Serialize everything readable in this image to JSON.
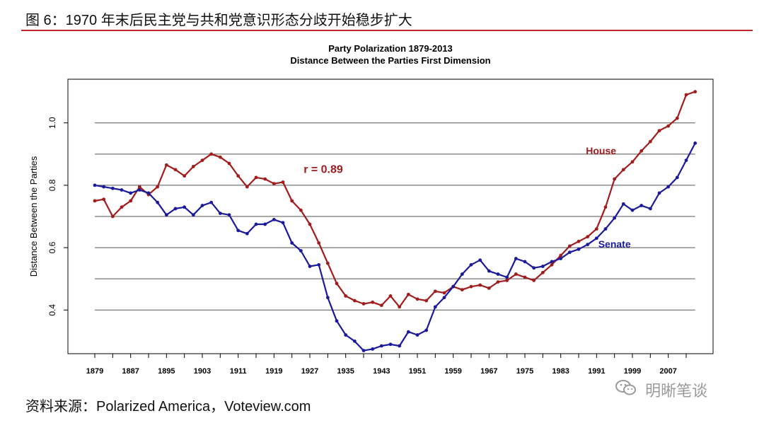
{
  "figure": {
    "title": "图 6：1970 年末后民主党与共和党意识形态分歧开始稳步扩大",
    "source": "资料来源：Polarized America，Voteview.com",
    "watermark_text": "明晰笔谈",
    "watermark_icon": "wechat-icon"
  },
  "chart_data": {
    "type": "line",
    "title": "Party Polarization 1879-2013",
    "subtitle": "Distance Between the Parties First Dimension",
    "xlabel": "",
    "ylabel": "Distance Between the Parties",
    "xlim": [
      1879,
      2013
    ],
    "ylim": [
      0.26,
      1.14
    ],
    "yticks": [
      0.4,
      0.6,
      0.8,
      1.0
    ],
    "ytick_labels": [
      "0.4",
      "0.6",
      "0.8",
      "1.0"
    ],
    "xticks": [
      1879,
      1883,
      1887,
      1891,
      1895,
      1899,
      1903,
      1907,
      1911,
      1915,
      1919,
      1923,
      1927,
      1931,
      1935,
      1939,
      1943,
      1947,
      1951,
      1955,
      1959,
      1963,
      1967,
      1971,
      1975,
      1979,
      1983,
      1987,
      1991,
      1995,
      1999,
      2003,
      2007,
      2011
    ],
    "xtick_labels": [
      "1879",
      "",
      "1887",
      "",
      "1895",
      "",
      "1903",
      "",
      "1911",
      "",
      "1919",
      "",
      "1927",
      "",
      "1935",
      "",
      "1943",
      "",
      "1951",
      "",
      "1959",
      "",
      "1967",
      "",
      "1975",
      "",
      "1983",
      "",
      "1991",
      "",
      "1999",
      "",
      "2007",
      ""
    ],
    "grid_y": [
      0.4,
      0.5,
      0.6,
      0.7,
      0.8,
      0.9,
      1.0
    ],
    "colors": {
      "house": "#a11c1c",
      "senate": "#1a1a9c",
      "grid": "#555555",
      "axis": "#000000"
    },
    "annotations": [
      {
        "text": "r =  0.89",
        "x": 1930,
        "y": 0.84
      }
    ],
    "series": [
      {
        "name": "House",
        "label_x": 1992,
        "label_y": 0.9,
        "x": [
          1879,
          1881,
          1883,
          1885,
          1887,
          1889,
          1891,
          1893,
          1895,
          1897,
          1899,
          1901,
          1903,
          1905,
          1907,
          1909,
          1911,
          1913,
          1915,
          1917,
          1919,
          1921,
          1923,
          1925,
          1927,
          1929,
          1931,
          1933,
          1935,
          1937,
          1939,
          1941,
          1943,
          1945,
          1947,
          1949,
          1951,
          1953,
          1955,
          1957,
          1959,
          1961,
          1963,
          1965,
          1967,
          1969,
          1971,
          1973,
          1975,
          1977,
          1979,
          1981,
          1983,
          1985,
          1987,
          1989,
          1991,
          1993,
          1995,
          1997,
          1999,
          2001,
          2003,
          2005,
          2007,
          2009,
          2011,
          2013
        ],
        "values": [
          0.75,
          0.755,
          0.7,
          0.73,
          0.75,
          0.795,
          0.77,
          0.795,
          0.865,
          0.85,
          0.83,
          0.86,
          0.88,
          0.9,
          0.89,
          0.87,
          0.83,
          0.795,
          0.825,
          0.82,
          0.805,
          0.81,
          0.75,
          0.72,
          0.675,
          0.615,
          0.55,
          0.485,
          0.445,
          0.43,
          0.42,
          0.425,
          0.415,
          0.445,
          0.41,
          0.45,
          0.435,
          0.43,
          0.46,
          0.455,
          0.475,
          0.465,
          0.475,
          0.48,
          0.47,
          0.49,
          0.495,
          0.515,
          0.505,
          0.495,
          0.52,
          0.545,
          0.575,
          0.605,
          0.62,
          0.635,
          0.66,
          0.73,
          0.82,
          0.85,
          0.875,
          0.91,
          0.94,
          0.975,
          0.99,
          1.015,
          1.09,
          1.1
        ]
      },
      {
        "name": "Senate",
        "label_x": 1995,
        "label_y": 0.6,
        "x": [
          1879,
          1881,
          1883,
          1885,
          1887,
          1889,
          1891,
          1893,
          1895,
          1897,
          1899,
          1901,
          1903,
          1905,
          1907,
          1909,
          1911,
          1913,
          1915,
          1917,
          1919,
          1921,
          1923,
          1925,
          1927,
          1929,
          1931,
          1933,
          1935,
          1937,
          1939,
          1941,
          1943,
          1945,
          1947,
          1949,
          1951,
          1953,
          1955,
          1957,
          1959,
          1961,
          1963,
          1965,
          1967,
          1969,
          1971,
          1973,
          1975,
          1977,
          1979,
          1981,
          1983,
          1985,
          1987,
          1989,
          1991,
          1993,
          1995,
          1997,
          1999,
          2001,
          2003,
          2005,
          2007,
          2009,
          2011,
          2013
        ],
        "values": [
          0.8,
          0.795,
          0.79,
          0.785,
          0.775,
          0.785,
          0.775,
          0.745,
          0.705,
          0.725,
          0.73,
          0.705,
          0.735,
          0.745,
          0.71,
          0.705,
          0.655,
          0.645,
          0.675,
          0.675,
          0.69,
          0.68,
          0.615,
          0.59,
          0.54,
          0.545,
          0.44,
          0.365,
          0.32,
          0.3,
          0.27,
          0.275,
          0.285,
          0.29,
          0.285,
          0.33,
          0.32,
          0.335,
          0.41,
          0.44,
          0.475,
          0.515,
          0.545,
          0.56,
          0.525,
          0.515,
          0.505,
          0.565,
          0.555,
          0.535,
          0.54,
          0.555,
          0.565,
          0.585,
          0.595,
          0.61,
          0.63,
          0.66,
          0.695,
          0.74,
          0.72,
          0.735,
          0.725,
          0.775,
          0.795,
          0.825,
          0.88,
          0.935
        ]
      }
    ]
  }
}
